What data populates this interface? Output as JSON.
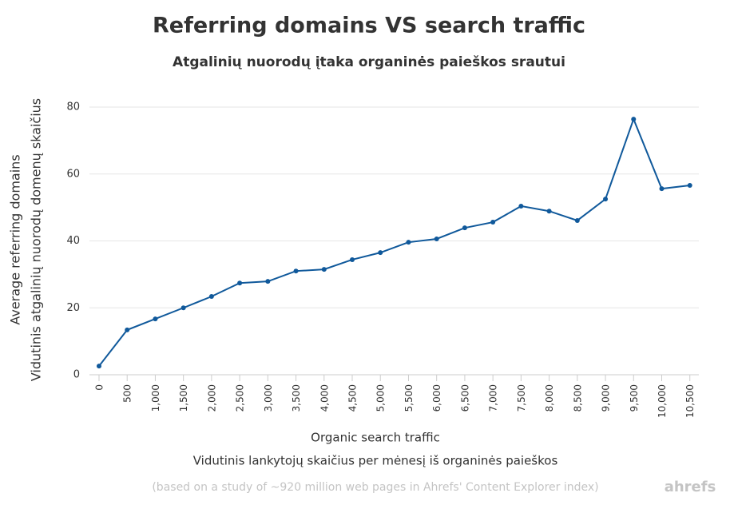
{
  "chart_data": {
    "type": "line",
    "title": "Referring domains VS search traffic",
    "subtitle": "Atgalinių nuorodų įtaka organinės paieškos srautui",
    "y_label": [
      "Average referring domains",
      "Vidutinis atgalinių nuorodų domenų skaičius"
    ],
    "x_label": [
      "Organic search traffic",
      "Vidutinis lankytojų skaičius per mėnesį iš organinės paieškos"
    ],
    "source": "(based on a study of ~920 million web pages in Ahrefs' Content Explorer index)",
    "brand": "ahrefs",
    "x": [
      0,
      500,
      1000,
      1500,
      2000,
      2500,
      3000,
      3500,
      4000,
      4500,
      5000,
      5500,
      6000,
      6500,
      7000,
      7500,
      8000,
      8500,
      9000,
      9500,
      10000,
      10500
    ],
    "series": [
      {
        "name": "Average referring domains",
        "color": "#10599b",
        "values": [
          2.6,
          13.4,
          16.7,
          20.0,
          23.4,
          27.4,
          27.9,
          31.0,
          31.5,
          34.4,
          36.5,
          39.6,
          40.6,
          43.9,
          45.6,
          50.4,
          48.9,
          46.1,
          52.5,
          76.4,
          55.6,
          56.6
        ]
      }
    ],
    "xlim": [
      -170,
      10660
    ],
    "ylim": [
      0,
      80
    ],
    "xticks": [
      0,
      500,
      {
        "value": 1000,
        "label": "1,000"
      },
      {
        "value": 1500,
        "label": "1,500"
      },
      {
        "value": 2000,
        "label": "2,000"
      },
      {
        "value": 2500,
        "label": "2,500"
      },
      {
        "value": 3000,
        "label": "3,000"
      },
      {
        "value": 3500,
        "label": "3,500"
      },
      {
        "value": 4000,
        "label": "4,000"
      },
      {
        "value": 4500,
        "label": "4,500"
      },
      {
        "value": 5000,
        "label": "5,000"
      },
      {
        "value": 5500,
        "label": "5,500"
      },
      {
        "value": 6000,
        "label": "6,000"
      },
      {
        "value": 6500,
        "label": "6,500"
      },
      {
        "value": 7000,
        "label": "7,000"
      },
      {
        "value": 7500,
        "label": "7,500"
      },
      {
        "value": 8000,
        "label": "8,000"
      },
      {
        "value": 8500,
        "label": "8,500"
      },
      {
        "value": 9000,
        "label": "9,000"
      },
      {
        "value": 9500,
        "label": "9,500"
      },
      {
        "value": 10000,
        "label": "10,000"
      },
      {
        "value": 10500,
        "label": "10,500"
      }
    ],
    "yticks": [
      0,
      20,
      40,
      60,
      80
    ],
    "grid": true
  }
}
